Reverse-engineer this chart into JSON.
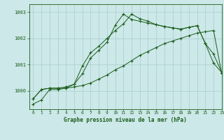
{
  "title": "Graphe pression niveau de la mer (hPa)",
  "bg_color": "#cce8e8",
  "grid_color": "#aacccc",
  "line_color": "#1a5c1a",
  "xlim": [
    -0.5,
    23
  ],
  "ylim": [
    999.3,
    1003.3
  ],
  "yticks": [
    1000,
    1001,
    1002,
    1003
  ],
  "xticks": [
    0,
    1,
    2,
    3,
    4,
    5,
    6,
    7,
    8,
    9,
    10,
    11,
    12,
    13,
    14,
    15,
    16,
    17,
    18,
    19,
    20,
    21,
    22,
    23
  ],
  "series1_x": [
    0,
    1,
    2,
    3,
    4,
    5,
    6,
    7,
    8,
    9,
    10,
    11,
    12,
    13,
    14,
    15,
    16,
    17,
    18,
    19,
    20,
    21,
    22,
    23
  ],
  "series1_y": [
    999.7,
    1000.05,
    1000.1,
    1000.1,
    1000.1,
    1000.15,
    1000.2,
    1000.3,
    1000.45,
    1000.6,
    1000.8,
    1000.95,
    1001.15,
    1001.35,
    1001.5,
    1001.65,
    1001.8,
    1001.9,
    1002.0,
    1002.1,
    1002.2,
    1002.25,
    1002.3,
    1000.65
  ],
  "series2_x": [
    0,
    1,
    2,
    3,
    4,
    5,
    6,
    7,
    8,
    9,
    10,
    11,
    12,
    13,
    14,
    15,
    16,
    17,
    18,
    19,
    20,
    21,
    22,
    23
  ],
  "series2_y": [
    999.7,
    1000.05,
    1000.1,
    1000.1,
    1000.15,
    1000.25,
    1000.95,
    1001.45,
    1001.7,
    1002.0,
    1002.3,
    1002.55,
    1002.92,
    1002.75,
    1002.65,
    1002.52,
    1002.45,
    1002.4,
    1002.35,
    1002.42,
    1002.48,
    1001.8,
    1001.4,
    1000.7
  ],
  "series3_x": [
    0,
    1,
    2,
    3,
    4,
    5,
    6,
    7,
    8,
    9,
    10,
    11,
    12,
    13,
    14,
    15,
    16,
    17,
    18,
    19,
    20,
    21,
    22,
    23
  ],
  "series3_y": [
    999.5,
    999.65,
    1000.05,
    1000.05,
    1000.1,
    1000.25,
    1000.65,
    1001.25,
    1001.55,
    1001.85,
    1002.5,
    1002.92,
    1002.72,
    1002.65,
    1002.58,
    1002.52,
    1002.45,
    1002.4,
    1002.35,
    1002.42,
    1002.48,
    1001.8,
    1001.05,
    1000.7
  ]
}
